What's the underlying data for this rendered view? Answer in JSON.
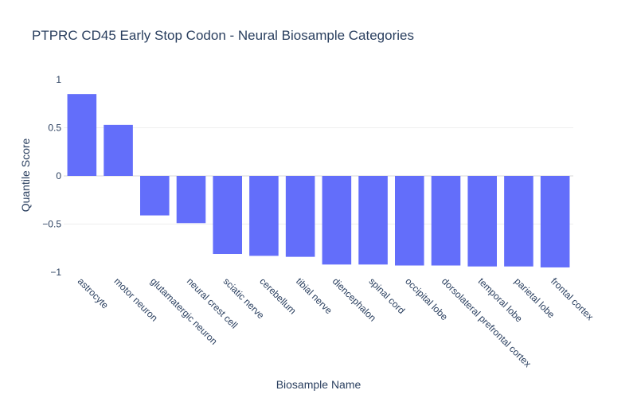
{
  "chart_data": {
    "type": "bar",
    "title": "PTPRC CD45 Early Stop Codon - Neural Biosample Categories",
    "xlabel": "Biosample Name",
    "ylabel": "Quantile Score",
    "categories": [
      "astrocyte",
      "motor neuron",
      "glutamatergic neuron",
      "neural crest cell",
      "sciatic nerve",
      "cerebellum",
      "tibial nerve",
      "diencephalon",
      "spinal cord",
      "occipital lobe",
      "dorsolateral prefrontal cortex",
      "temporal lobe",
      "parietal lobe",
      "frontal cortex"
    ],
    "values": [
      0.85,
      0.53,
      -0.41,
      -0.49,
      -0.81,
      -0.83,
      -0.84,
      -0.92,
      -0.92,
      -0.93,
      -0.93,
      -0.94,
      -0.94,
      -0.95
    ],
    "ylim": [
      -1,
      1
    ],
    "yticks": [
      1,
      0.5,
      0,
      -0.5,
      -1
    ],
    "ytick_labels": [
      "1",
      "0.5",
      "0",
      "−0.5",
      "−1"
    ],
    "grid": true,
    "bar_color": "#636efa"
  }
}
